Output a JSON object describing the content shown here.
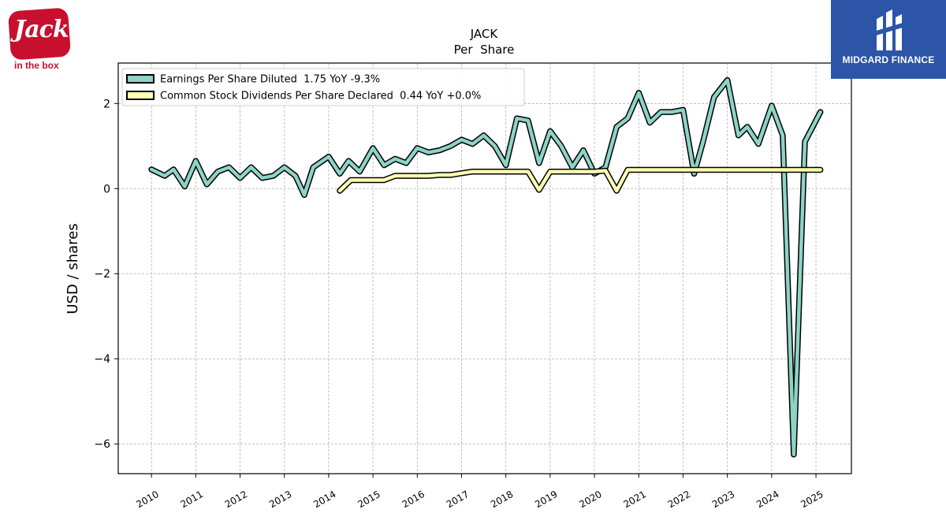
{
  "logos": {
    "company_word": "Jack",
    "company_sub": "in the box",
    "company_color": "#c8102e",
    "publisher_name": "MIDGARD FINANCE",
    "publisher_color": "#2c55a8"
  },
  "chart_data": {
    "type": "line",
    "title": "JACK",
    "subtitle": "Per  Share",
    "xlabel": "",
    "ylabel": "USD / shares",
    "xlim": [
      2009.25,
      2025.8
    ],
    "ylim": [
      -6.7,
      2.95
    ],
    "yticks": [
      2,
      0,
      -2,
      -4,
      -6
    ],
    "ytick_labels": [
      "2",
      "0",
      "−2",
      "−4",
      "−6"
    ],
    "xticks": [
      2010,
      2011,
      2012,
      2013,
      2014,
      2015,
      2016,
      2017,
      2018,
      2019,
      2020,
      2021,
      2022,
      2023,
      2024,
      2025
    ],
    "xtick_labels": [
      "2010",
      "2011",
      "2012",
      "2013",
      "2014",
      "2015",
      "2016",
      "2017",
      "2018",
      "2019",
      "2020",
      "2021",
      "2022",
      "2023",
      "2024",
      "2025"
    ],
    "grid": true,
    "legend_position": "top-left",
    "series": [
      {
        "name": "Earnings Per Share Diluted",
        "legend_label": "Earnings Per Share Diluted  1.75 YoY -9.3%",
        "color": "#8dd3c7",
        "x": [
          2010.0,
          2010.3,
          2010.5,
          2010.75,
          2011.0,
          2011.25,
          2011.5,
          2011.75,
          2012.0,
          2012.25,
          2012.5,
          2012.75,
          2013.0,
          2013.25,
          2013.45,
          2013.65,
          2014.0,
          2014.25,
          2014.45,
          2014.7,
          2015.0,
          2015.25,
          2015.5,
          2015.75,
          2016.0,
          2016.25,
          2016.5,
          2016.75,
          2017.0,
          2017.25,
          2017.5,
          2017.75,
          2018.0,
          2018.25,
          2018.5,
          2018.75,
          2019.0,
          2019.25,
          2019.5,
          2019.75,
          2020.0,
          2020.25,
          2020.5,
          2020.75,
          2021.0,
          2021.25,
          2021.5,
          2021.75,
          2022.0,
          2022.25,
          2022.45,
          2022.7,
          2023.0,
          2023.25,
          2023.45,
          2023.7,
          2024.0,
          2024.25,
          2024.5,
          2024.75,
          2025.1
        ],
        "y": [
          0.45,
          0.3,
          0.45,
          0.05,
          0.65,
          0.1,
          0.4,
          0.5,
          0.25,
          0.5,
          0.25,
          0.3,
          0.5,
          0.3,
          -0.15,
          0.5,
          0.75,
          0.35,
          0.65,
          0.4,
          0.95,
          0.55,
          0.7,
          0.6,
          0.95,
          0.85,
          0.9,
          1.0,
          1.15,
          1.05,
          1.25,
          1.0,
          0.55,
          1.65,
          1.6,
          0.6,
          1.35,
          1.0,
          0.5,
          0.9,
          0.35,
          0.5,
          1.45,
          1.65,
          2.25,
          1.55,
          1.8,
          1.8,
          1.85,
          0.35,
          1.1,
          2.15,
          2.55,
          1.25,
          1.45,
          1.05,
          1.95,
          1.25,
          -6.25,
          1.1,
          1.8
        ]
      },
      {
        "name": "Common Stock Dividends Per Share Declared",
        "legend_label": "Common Stock Dividends Per Share Declared  0.44 YoY +0.0%",
        "color": "#ffffb3",
        "x": [
          2014.25,
          2014.5,
          2014.75,
          2015.0,
          2015.25,
          2015.5,
          2015.75,
          2016.0,
          2016.25,
          2016.5,
          2016.75,
          2017.0,
          2017.25,
          2017.5,
          2017.75,
          2018.0,
          2018.25,
          2018.5,
          2018.75,
          2019.0,
          2019.25,
          2019.5,
          2019.75,
          2020.0,
          2020.25,
          2020.5,
          2020.75,
          2021.0,
          2021.25,
          2021.5,
          2021.75,
          2022.0,
          2022.25,
          2022.5,
          2022.75,
          2023.0,
          2023.25,
          2023.5,
          2023.75,
          2024.0,
          2024.25,
          2024.5,
          2024.75,
          2025.1
        ],
        "y": [
          -0.05,
          0.2,
          0.2,
          0.2,
          0.2,
          0.3,
          0.3,
          0.3,
          0.3,
          0.32,
          0.32,
          0.36,
          0.4,
          0.4,
          0.4,
          0.4,
          0.4,
          0.4,
          -0.03,
          0.4,
          0.4,
          0.4,
          0.4,
          0.4,
          0.42,
          -0.05,
          0.44,
          0.44,
          0.44,
          0.44,
          0.44,
          0.44,
          0.44,
          0.44,
          0.44,
          0.44,
          0.44,
          0.44,
          0.44,
          0.44,
          0.44,
          0.44,
          0.44,
          0.44
        ]
      }
    ]
  }
}
